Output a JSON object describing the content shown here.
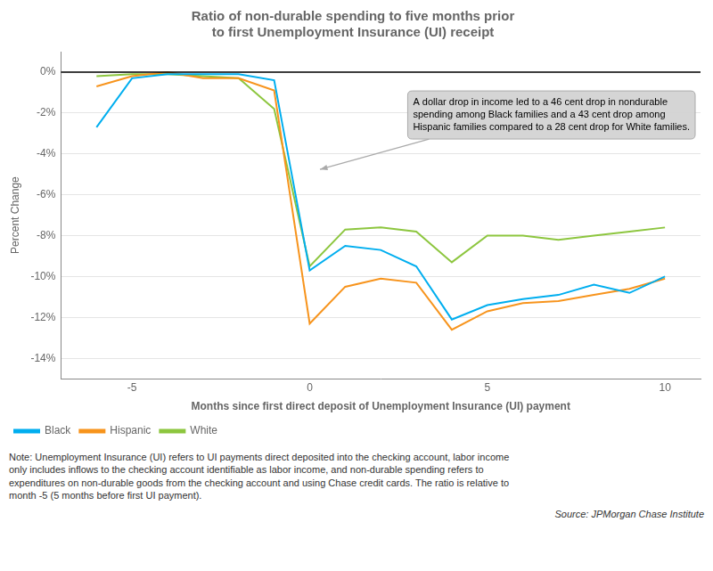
{
  "chart_data": {
    "type": "line",
    "title": "Ratio of non-durable spending to five months prior\nto first Unemployment Insurance (UI) receipt",
    "xlabel": "Months since first direct deposit of Unemployment Insurance (UI) payment",
    "ylabel": "Percent Change",
    "xlim": [
      -7,
      11
    ],
    "ylim": [
      -15,
      1
    ],
    "xticks": [
      -5,
      0,
      5,
      10
    ],
    "yticks": [
      {
        "value": 0,
        "label": "0%"
      },
      {
        "value": -2,
        "label": "-2%"
      },
      {
        "value": -4,
        "label": "-4%"
      },
      {
        "value": -6,
        "label": "-6%"
      },
      {
        "value": -8,
        "label": "-8%"
      },
      {
        "value": -10,
        "label": "-10%"
      },
      {
        "value": -12,
        "label": "-12%"
      },
      {
        "value": -14,
        "label": "-14%"
      }
    ],
    "x": [
      -6,
      -5,
      -4,
      -3,
      -2,
      -1,
      0,
      1,
      2,
      3,
      4,
      5,
      6,
      7,
      8,
      9,
      10
    ],
    "series": [
      {
        "name": "Black",
        "color": "#00AEEF",
        "values": [
          -2.7,
          -0.3,
          -0.1,
          -0.1,
          -0.1,
          -0.4,
          -9.7,
          -8.5,
          -8.7,
          -9.5,
          -12.1,
          -11.4,
          -11.1,
          -10.9,
          -10.4,
          -10.8,
          -10.0
        ]
      },
      {
        "name": "Hispanic",
        "color": "#F7941D",
        "values": [
          -0.7,
          -0.2,
          0.0,
          -0.3,
          -0.3,
          -0.9,
          -12.3,
          -10.5,
          -10.1,
          -10.3,
          -12.6,
          -11.7,
          -11.3,
          -11.2,
          -10.9,
          -10.6,
          -10.1
        ]
      },
      {
        "name": "White",
        "color": "#8DC63F",
        "values": [
          -0.2,
          -0.1,
          -0.1,
          -0.2,
          -0.3,
          -1.8,
          -9.5,
          -7.7,
          -7.6,
          -7.8,
          -9.3,
          -8.0,
          -8.0,
          -8.2,
          -8.0,
          -7.8,
          -7.6
        ]
      }
    ],
    "hline": 0,
    "grid": "y",
    "legend": "bottom",
    "annotation": "A dollar drop in income led to a 46 cent drop in nondurable\nspending among Black families and a 43 cent drop among\nHispanic families compared to a 28 cent drop for White families.",
    "note": "Note: Unemployment Insurance (UI) refers to UI payments direct deposited into the checking account, labor income\nonly includes inflows to the checking account identifiable as labor income, and non-durable spending refers to\nexpenditures on non-durable goods from the checking account and using Chase credit cards. The ratio is relative to\nmonth -5 (5 months before first UI payment).",
    "source": "Source: JPMorgan Chase Institute"
  }
}
